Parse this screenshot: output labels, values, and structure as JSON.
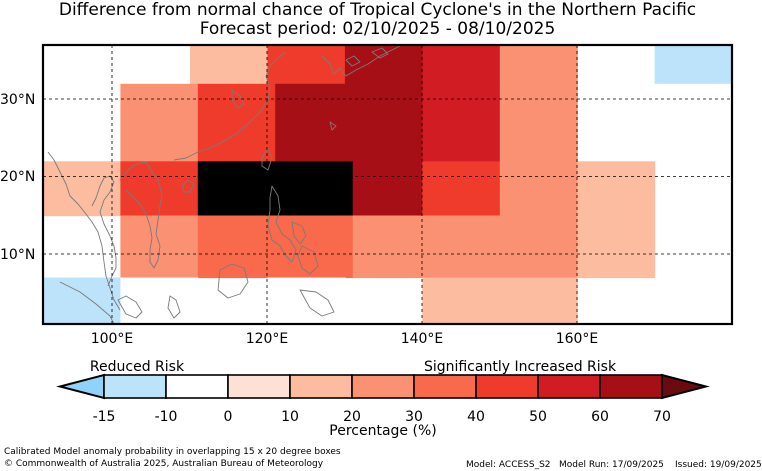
{
  "title": {
    "line1": "Difference from normal chance of Tropical Cyclone's in the Northern Pacific",
    "line2": "Forecast period: 02/10/2025 - 08/10/2025"
  },
  "map": {
    "lat_labels": [
      "30°N",
      "20°N",
      "10°N"
    ],
    "lon_labels": [
      "100°E",
      "120°E",
      "140°E",
      "160°E"
    ],
    "extent": {
      "lon_min": 91,
      "lon_max": 180,
      "lat_min": 1,
      "lat_max": 37
    },
    "cells": [
      {
        "lon": [
          91,
          101
        ],
        "lat": [
          32,
          37
        ],
        "bin": 1
      },
      {
        "lon": [
          110,
          120
        ],
        "lat": [
          32,
          37
        ],
        "bin": 3
      },
      {
        "lon": [
          120,
          130
        ],
        "lat": [
          32,
          37
        ],
        "bin": 6
      },
      {
        "lon": [
          130,
          140
        ],
        "lat": [
          32,
          37
        ],
        "bin": 8
      },
      {
        "lon": [
          140,
          150
        ],
        "lat": [
          32,
          37
        ],
        "bin": 7
      },
      {
        "lon": [
          150,
          160
        ],
        "lat": [
          32,
          37
        ],
        "bin": 4
      },
      {
        "lon": [
          170,
          180
        ],
        "lat": [
          32,
          37
        ],
        "bin": 0
      },
      {
        "lon": [
          101,
          111
        ],
        "lat": [
          22,
          32
        ],
        "bin": 4
      },
      {
        "lon": [
          111,
          121
        ],
        "lat": [
          22,
          32
        ],
        "bin": 6
      },
      {
        "lon": [
          121,
          140
        ],
        "lat": [
          22,
          32
        ],
        "bin": 8
      },
      {
        "lon": [
          140,
          150
        ],
        "lat": [
          22,
          32
        ],
        "bin": 7
      },
      {
        "lon": [
          150,
          160
        ],
        "lat": [
          22,
          32
        ],
        "bin": 4
      },
      {
        "lon": [
          170,
          180
        ],
        "lat": [
          22,
          32
        ],
        "bin": 1
      },
      {
        "lon": [
          91,
          101
        ],
        "lat": [
          15,
          22
        ],
        "bin": 3
      },
      {
        "lon": [
          101,
          111
        ],
        "lat": [
          15,
          22
        ],
        "bin": 6
      },
      {
        "lon": [
          111,
          131
        ],
        "lat": [
          15,
          22
        ],
        "bin": 9
      },
      {
        "lon": [
          131,
          140
        ],
        "lat": [
          15,
          22
        ],
        "bin": 8
      },
      {
        "lon": [
          140,
          150
        ],
        "lat": [
          15,
          22
        ],
        "bin": 6
      },
      {
        "lon": [
          150,
          160
        ],
        "lat": [
          15,
          22
        ],
        "bin": 4
      },
      {
        "lon": [
          160,
          170
        ],
        "lat": [
          15,
          22
        ],
        "bin": 3
      },
      {
        "lon": [
          101,
          111
        ],
        "lat": [
          7,
          15
        ],
        "bin": 4
      },
      {
        "lon": [
          111,
          131
        ],
        "lat": [
          7,
          15
        ],
        "bin": 5
      },
      {
        "lon": [
          131,
          160
        ],
        "lat": [
          7,
          15
        ],
        "bin": 4
      },
      {
        "lon": [
          160,
          170
        ],
        "lat": [
          7,
          15
        ],
        "bin": 3
      },
      {
        "lon": [
          91,
          101
        ],
        "lat": [
          1,
          7
        ],
        "bin": 0
      },
      {
        "lon": [
          101,
          111
        ],
        "lat": [
          1,
          7
        ],
        "bin": 1
      },
      {
        "lon": [
          120,
          130
        ],
        "lat": [
          1,
          7
        ],
        "bin": 1
      },
      {
        "lon": [
          140,
          160
        ],
        "lat": [
          1,
          7
        ],
        "bin": 3
      }
    ]
  },
  "legend": {
    "reduced_label": "Reduced Risk",
    "increased_label": "Significantly Increased Risk",
    "ticks": [
      "-15",
      "-10",
      "0",
      "10",
      "20",
      "30",
      "40",
      "50",
      "60",
      "70"
    ],
    "axis_label": "Percentage (%)",
    "under_color": "#8fd2fa",
    "over_color": "#6b0a10",
    "colors": [
      "#bde3fb",
      "#ffffff",
      "#fee1d6",
      "#fcbca0",
      "#fb9173",
      "#f86a4b",
      "#ef3b2c",
      "#d01c22",
      "#a70f16"
    ]
  },
  "footer": {
    "method": "Calibrated Model anomaly probability in overlapping 15 x 20 degree boxes",
    "copyright": "© Commonwealth of Australia 2025, Australian Bureau of Meteorology",
    "model": "Model: ACCESS_S2",
    "run": "Model Run: 17/09/2025",
    "issued": "Issued: 19/09/2025"
  }
}
